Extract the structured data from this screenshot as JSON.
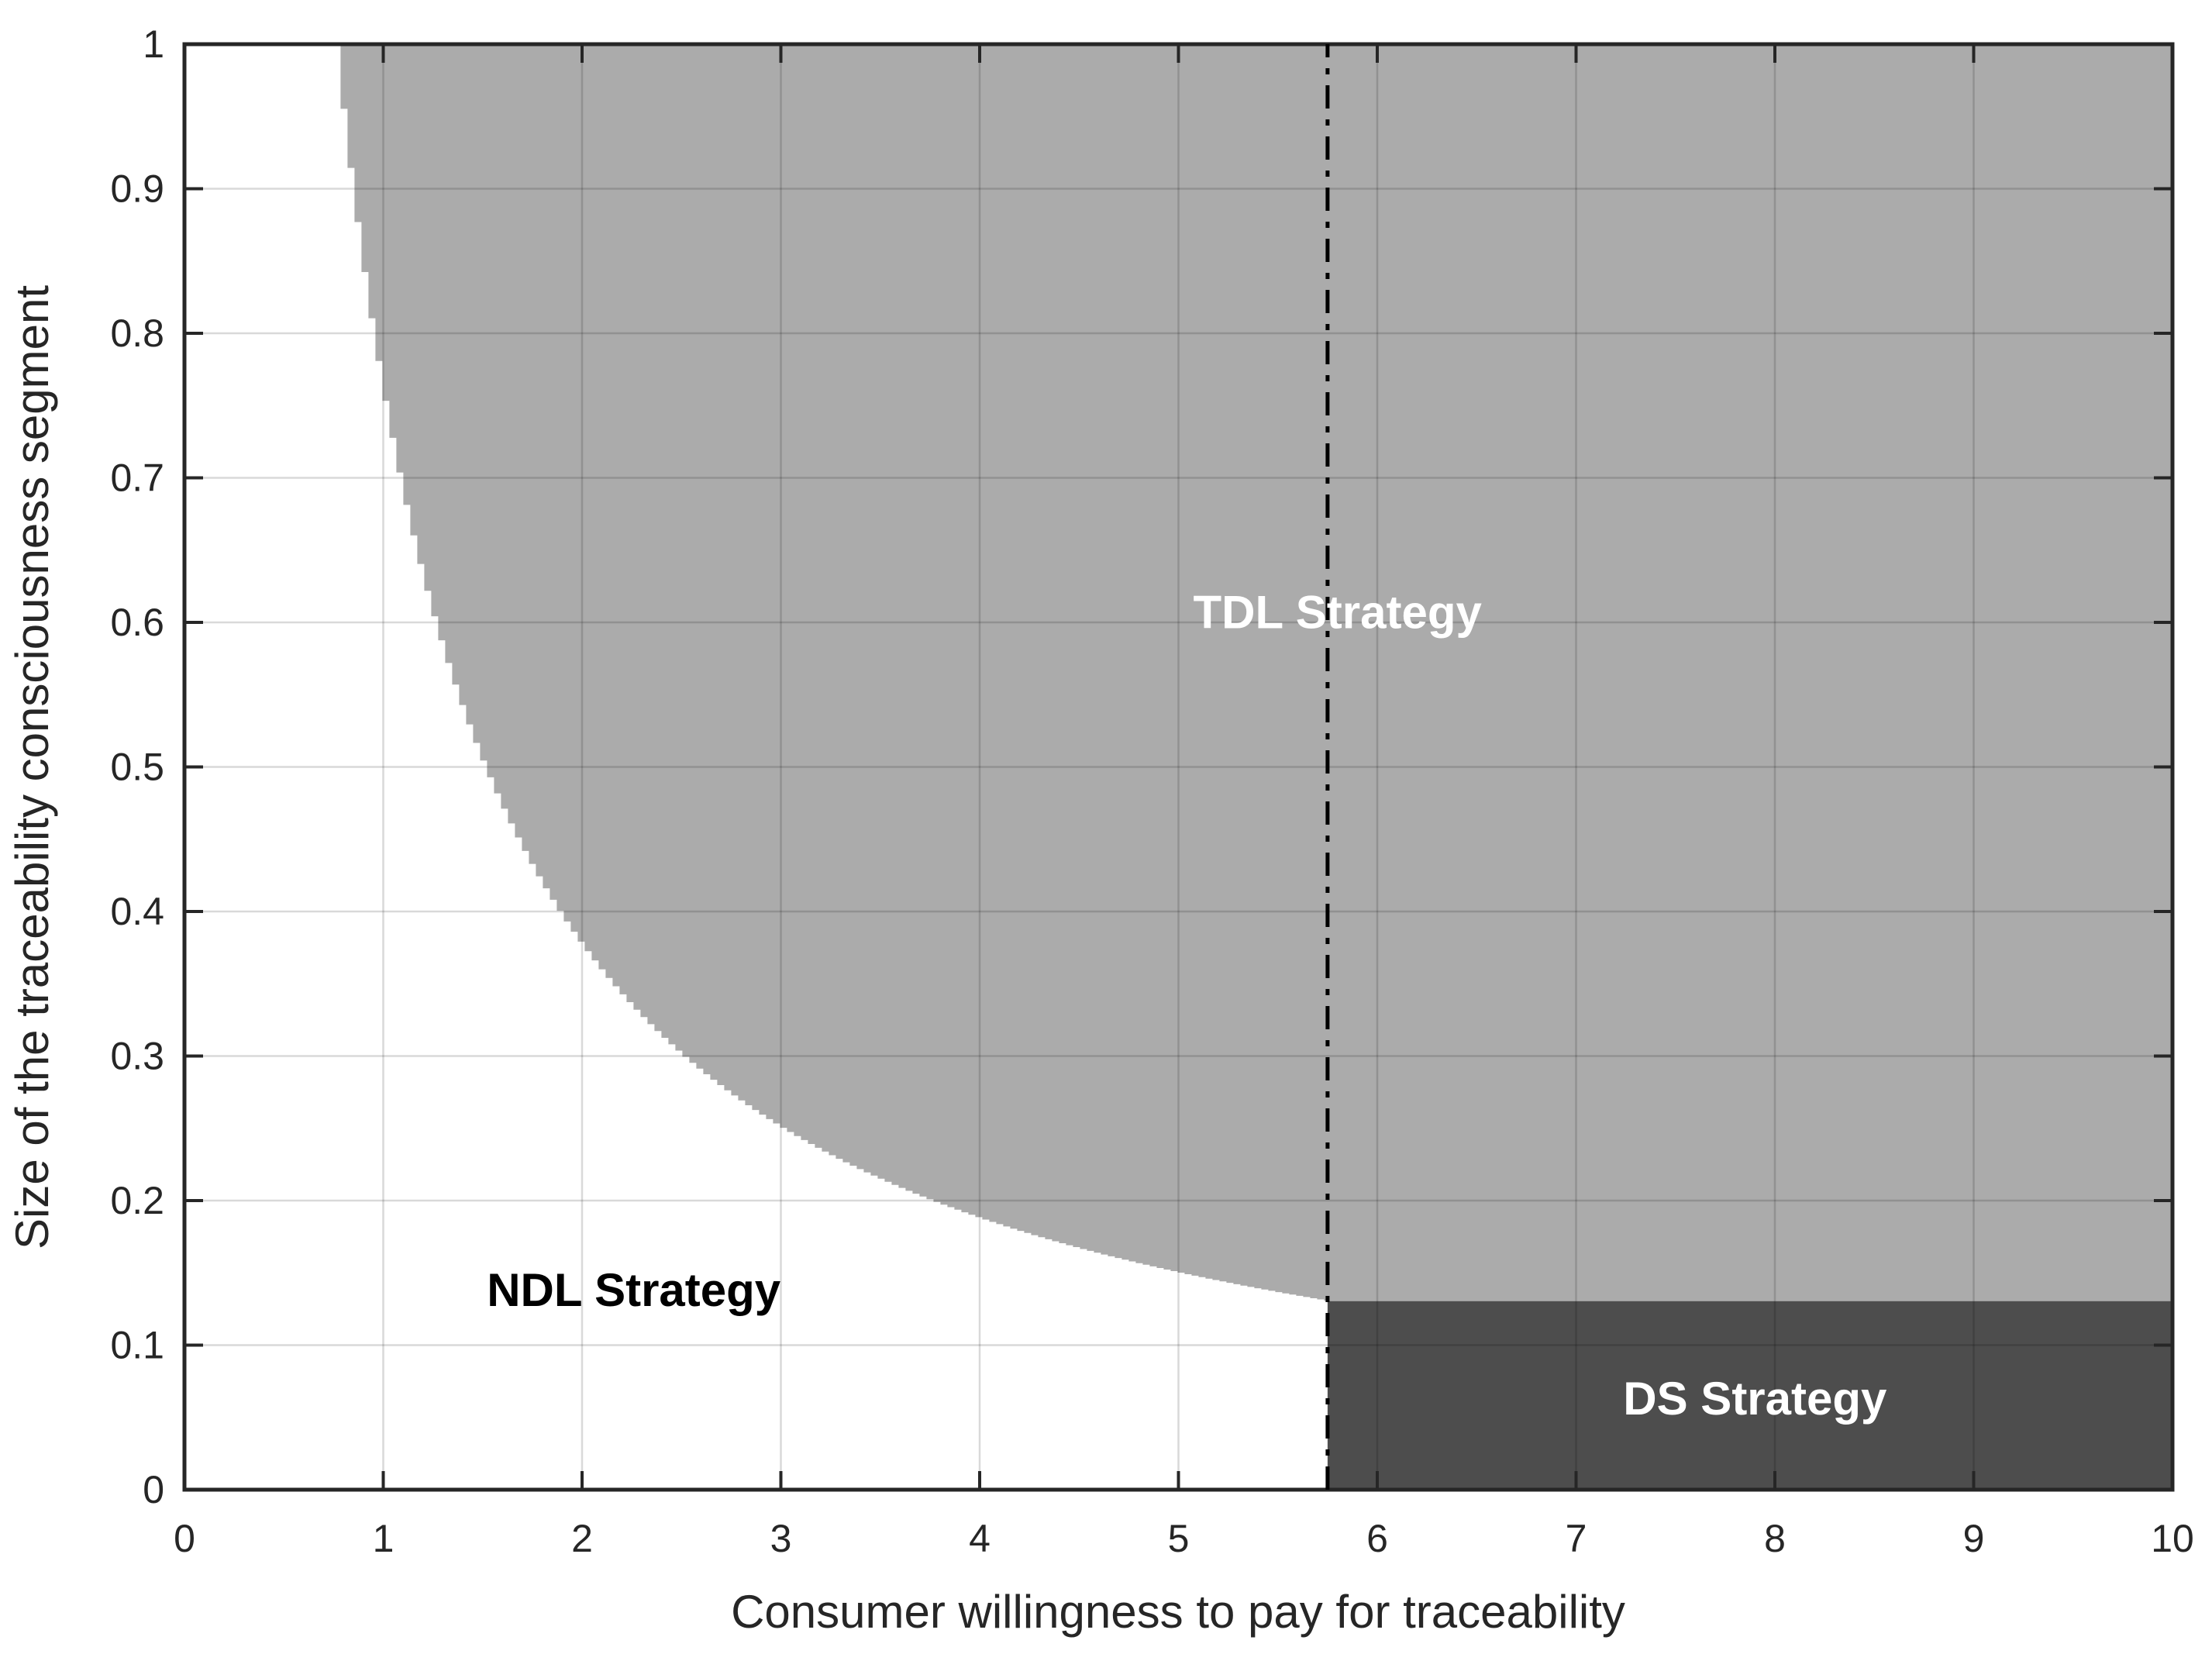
{
  "chart_data": {
    "type": "area",
    "title": "",
    "xlabel": "Consumer willingness to pay for traceability",
    "ylabel": "Size of the traceability consciousness segment",
    "xlim": [
      0,
      10
    ],
    "ylim": [
      0,
      1
    ],
    "x_ticks": [
      0,
      1,
      2,
      3,
      4,
      5,
      6,
      7,
      8,
      9,
      10
    ],
    "x_tick_labels": [
      "0",
      "1",
      "2",
      "3",
      "4",
      "5",
      "6",
      "7",
      "8",
      "9",
      "10"
    ],
    "y_ticks": [
      0,
      0.1,
      0.2,
      0.3,
      0.4,
      0.5,
      0.6,
      0.7,
      0.8,
      0.9,
      1
    ],
    "y_tick_labels": [
      "0",
      "0.1",
      "0.2",
      "0.3",
      "0.4",
      "0.5",
      "0.6",
      "0.7",
      "0.8",
      "0.9",
      "1"
    ],
    "grid": true,
    "legend": "none",
    "boundary_curve": {
      "equation": "y = k / x",
      "k": 0.75,
      "from_x": 0.75,
      "to_x": 5.75
    },
    "threshold_line": {
      "x": 5.75,
      "style": "dashdot",
      "color": "#000000",
      "from_y": 0,
      "to_y": 1
    },
    "ds_rect": {
      "x1": 5.75,
      "y1": 0,
      "x2": 10,
      "y2": 0.13
    },
    "regions": [
      {
        "id": "ndl",
        "label": "NDL Strategy",
        "fill": "#ffffff",
        "label_color": "#000000",
        "label_x": 2.26,
        "label_y": 0.138,
        "description": "below boundary curve, left of threshold line"
      },
      {
        "id": "tdl",
        "label": "TDL Strategy",
        "fill": "#ababab",
        "label_color": "#ffffff",
        "label_x": 5.8,
        "label_y": 0.607,
        "description": "above boundary curve"
      },
      {
        "id": "ds",
        "label": "DS Strategy",
        "fill": "#4d4d4d",
        "label_color": "#ffffff",
        "label_x": 7.9,
        "label_y": 0.063,
        "description": "right of threshold line, below boundary level"
      }
    ],
    "colors": {
      "axis": "#262626",
      "grid": "rgba(0,0,0,0.15)",
      "tdl_fill": "#ababab",
      "ds_fill": "#4d4d4d",
      "background": "#ffffff"
    }
  }
}
